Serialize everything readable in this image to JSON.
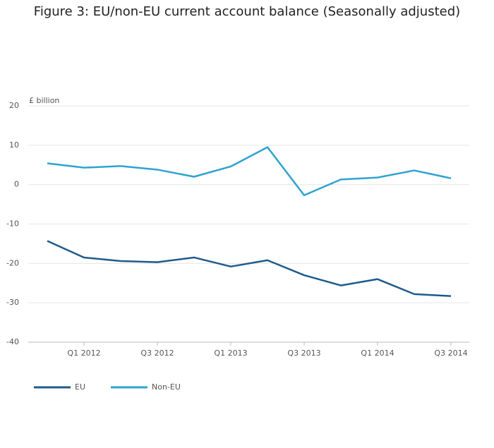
{
  "chart_data": {
    "type": "line",
    "title": "Figure 3: EU/non-EU current account balance (Seasonally adjusted)",
    "y_label": "£ billion",
    "categories": [
      null,
      "Q1 2012",
      null,
      "Q3 2012",
      null,
      "Q1 2013",
      null,
      "Q3 2013",
      null,
      "Q1 2014",
      null,
      "Q3 2014"
    ],
    "series": [
      {
        "name": "EU",
        "color": "#1f5a8c",
        "values": [
          -14.3,
          -18.5,
          -19.4,
          -19.7,
          -18.5,
          -20.8,
          -19.2,
          -23,
          -25.6,
          -24,
          -27.8,
          -28.3
        ]
      },
      {
        "name": "Non-EU",
        "color": "#2ea3d0",
        "values": [
          5.4,
          4.3,
          4.7,
          3.8,
          2.0,
          4.6,
          9.5,
          -2.7,
          1.3,
          1.8,
          3.6,
          1.6
        ]
      }
    ],
    "ylim": [
      -40,
      20
    ],
    "yticks": [
      -40,
      -30,
      -20,
      -10,
      0,
      10,
      20
    ],
    "grid": true,
    "legend": "bottom-left"
  }
}
